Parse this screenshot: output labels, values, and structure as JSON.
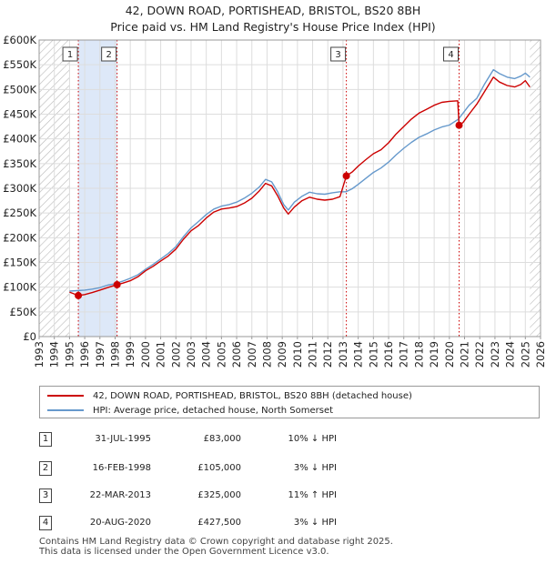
{
  "chart_data": {
    "type": "line",
    "title": "42, DOWN ROAD, PORTISHEAD, BRISTOL, BS20 8BH",
    "subtitle": "Price paid vs. HM Land Registry's House Price Index (HPI)",
    "xlim": [
      1993,
      2026
    ],
    "ylim": [
      0,
      600000
    ],
    "y_ticks": [
      0,
      50000,
      100000,
      150000,
      200000,
      250000,
      300000,
      350000,
      400000,
      450000,
      500000,
      550000,
      600000
    ],
    "y_tick_labels": [
      "£0",
      "£50K",
      "£100K",
      "£150K",
      "£200K",
      "£250K",
      "£300K",
      "£350K",
      "£400K",
      "£450K",
      "£500K",
      "£550K",
      "£600K"
    ],
    "x_ticks": [
      1993,
      1994,
      1995,
      1996,
      1997,
      1998,
      1999,
      2000,
      2001,
      2002,
      2003,
      2004,
      2005,
      2006,
      2007,
      2008,
      2009,
      2010,
      2011,
      2012,
      2013,
      2014,
      2015,
      2016,
      2017,
      2018,
      2019,
      2020,
      2021,
      2022,
      2023,
      2024,
      2025,
      2026
    ],
    "data_start": 1995.0,
    "data_end": 2025.3,
    "series": [
      {
        "name": "42, DOWN ROAD, PORTISHEAD, BRISTOL, BS20 8BH (detached house)",
        "color": "#cc0000",
        "points": [
          [
            1995.0,
            90000
          ],
          [
            1995.58,
            83000
          ],
          [
            1996.0,
            85000
          ],
          [
            1996.5,
            89000
          ],
          [
            1997.0,
            94000
          ],
          [
            1997.5,
            99000
          ],
          [
            1998.13,
            105000
          ],
          [
            1998.5,
            108000
          ],
          [
            1999.0,
            113000
          ],
          [
            1999.5,
            121000
          ],
          [
            2000.0,
            133000
          ],
          [
            2000.5,
            142000
          ],
          [
            2001.0,
            153000
          ],
          [
            2001.5,
            163000
          ],
          [
            2002.0,
            177000
          ],
          [
            2002.5,
            197000
          ],
          [
            2003.0,
            214000
          ],
          [
            2003.5,
            225000
          ],
          [
            2004.0,
            240000
          ],
          [
            2004.5,
            252000
          ],
          [
            2005.0,
            258000
          ],
          [
            2005.5,
            260000
          ],
          [
            2006.0,
            263000
          ],
          [
            2006.5,
            270000
          ],
          [
            2007.0,
            280000
          ],
          [
            2007.5,
            295000
          ],
          [
            2007.9,
            310000
          ],
          [
            2008.3,
            305000
          ],
          [
            2008.7,
            285000
          ],
          [
            2009.1,
            260000
          ],
          [
            2009.4,
            248000
          ],
          [
            2009.8,
            262000
          ],
          [
            2010.3,
            275000
          ],
          [
            2010.8,
            282000
          ],
          [
            2011.3,
            278000
          ],
          [
            2011.8,
            276000
          ],
          [
            2012.3,
            278000
          ],
          [
            2012.8,
            283000
          ],
          [
            2013.22,
            325000
          ],
          [
            2013.6,
            333000
          ],
          [
            2014.0,
            345000
          ],
          [
            2014.5,
            358000
          ],
          [
            2015.0,
            370000
          ],
          [
            2015.5,
            378000
          ],
          [
            2016.0,
            392000
          ],
          [
            2016.5,
            410000
          ],
          [
            2017.0,
            425000
          ],
          [
            2017.5,
            440000
          ],
          [
            2018.0,
            452000
          ],
          [
            2018.5,
            460000
          ],
          [
            2019.0,
            468000
          ],
          [
            2019.5,
            474000
          ],
          [
            2020.0,
            476000
          ],
          [
            2020.55,
            477000
          ],
          [
            2020.64,
            427500
          ],
          [
            2020.9,
            433000
          ],
          [
            2021.3,
            450000
          ],
          [
            2021.8,
            470000
          ],
          [
            2022.3,
            495000
          ],
          [
            2022.7,
            515000
          ],
          [
            2022.9,
            525000
          ],
          [
            2023.3,
            515000
          ],
          [
            2023.8,
            508000
          ],
          [
            2024.3,
            505000
          ],
          [
            2024.7,
            510000
          ],
          [
            2025.0,
            518000
          ],
          [
            2025.3,
            505000
          ]
        ]
      },
      {
        "name": "HPI: Average price, detached house, North Somerset",
        "color": "#6699cc",
        "points": [
          [
            1995.0,
            92000
          ],
          [
            1995.5,
            93000
          ],
          [
            1996.0,
            94000
          ],
          [
            1996.5,
            96000
          ],
          [
            1997.0,
            99000
          ],
          [
            1997.5,
            104000
          ],
          [
            1998.0,
            107000
          ],
          [
            1998.5,
            112000
          ],
          [
            1999.0,
            118000
          ],
          [
            1999.5,
            125000
          ],
          [
            2000.0,
            136000
          ],
          [
            2000.5,
            146000
          ],
          [
            2001.0,
            157000
          ],
          [
            2001.5,
            168000
          ],
          [
            2002.0,
            182000
          ],
          [
            2002.5,
            202000
          ],
          [
            2003.0,
            220000
          ],
          [
            2003.5,
            233000
          ],
          [
            2004.0,
            247000
          ],
          [
            2004.5,
            258000
          ],
          [
            2005.0,
            264000
          ],
          [
            2005.5,
            267000
          ],
          [
            2006.0,
            272000
          ],
          [
            2006.5,
            280000
          ],
          [
            2007.0,
            290000
          ],
          [
            2007.5,
            303000
          ],
          [
            2007.9,
            318000
          ],
          [
            2008.3,
            313000
          ],
          [
            2008.7,
            293000
          ],
          [
            2009.1,
            267000
          ],
          [
            2009.4,
            256000
          ],
          [
            2009.8,
            272000
          ],
          [
            2010.3,
            284000
          ],
          [
            2010.8,
            292000
          ],
          [
            2011.3,
            289000
          ],
          [
            2011.8,
            288000
          ],
          [
            2012.3,
            291000
          ],
          [
            2012.8,
            293000
          ],
          [
            2013.2,
            293000
          ],
          [
            2013.6,
            299000
          ],
          [
            2014.0,
            308000
          ],
          [
            2014.5,
            320000
          ],
          [
            2015.0,
            332000
          ],
          [
            2015.5,
            341000
          ],
          [
            2016.0,
            353000
          ],
          [
            2016.5,
            368000
          ],
          [
            2017.0,
            381000
          ],
          [
            2017.5,
            393000
          ],
          [
            2018.0,
            403000
          ],
          [
            2018.5,
            410000
          ],
          [
            2019.0,
            418000
          ],
          [
            2019.5,
            424000
          ],
          [
            2020.0,
            428000
          ],
          [
            2020.6,
            440000
          ],
          [
            2020.9,
            452000
          ],
          [
            2021.3,
            468000
          ],
          [
            2021.8,
            482000
          ],
          [
            2022.3,
            510000
          ],
          [
            2022.7,
            530000
          ],
          [
            2022.9,
            540000
          ],
          [
            2023.3,
            532000
          ],
          [
            2023.8,
            525000
          ],
          [
            2024.3,
            522000
          ],
          [
            2024.7,
            527000
          ],
          [
            2025.0,
            533000
          ],
          [
            2025.3,
            525000
          ]
        ]
      }
    ],
    "sales": [
      {
        "n": "1",
        "x": 1995.58,
        "price": 83000
      },
      {
        "n": "2",
        "x": 1998.13,
        "price": 105000
      },
      {
        "n": "3",
        "x": 2013.22,
        "price": 325000
      },
      {
        "n": "4",
        "x": 2020.64,
        "price": 427500
      }
    ],
    "shaded_ranges": [
      [
        1995.58,
        1998.13
      ]
    ],
    "colors": {
      "price_line": "#cc0000",
      "hpi_line": "#6699cc",
      "shade": "#dde8f8",
      "hatch": "#b8b8b8",
      "grid": "#dddddd"
    }
  },
  "legend": {
    "property": "42, DOWN ROAD, PORTISHEAD, BRISTOL, BS20 8BH (detached house)",
    "hpi": "HPI: Average price, detached house, North Somerset"
  },
  "sales_table": [
    {
      "n": "1",
      "date": "31-JUL-1995",
      "price": "£83,000",
      "hpi": "10% ↓ HPI"
    },
    {
      "n": "2",
      "date": "16-FEB-1998",
      "price": "£105,000",
      "hpi": "3% ↓ HPI"
    },
    {
      "n": "3",
      "date": "22-MAR-2013",
      "price": "£325,000",
      "hpi": "11% ↑ HPI"
    },
    {
      "n": "4",
      "date": "20-AUG-2020",
      "price": "£427,500",
      "hpi": "3% ↓ HPI"
    }
  ],
  "footer": {
    "line1": "Contains HM Land Registry data © Crown copyright and database right 2025.",
    "line2": "This data is licensed under the Open Government Licence v3.0."
  }
}
